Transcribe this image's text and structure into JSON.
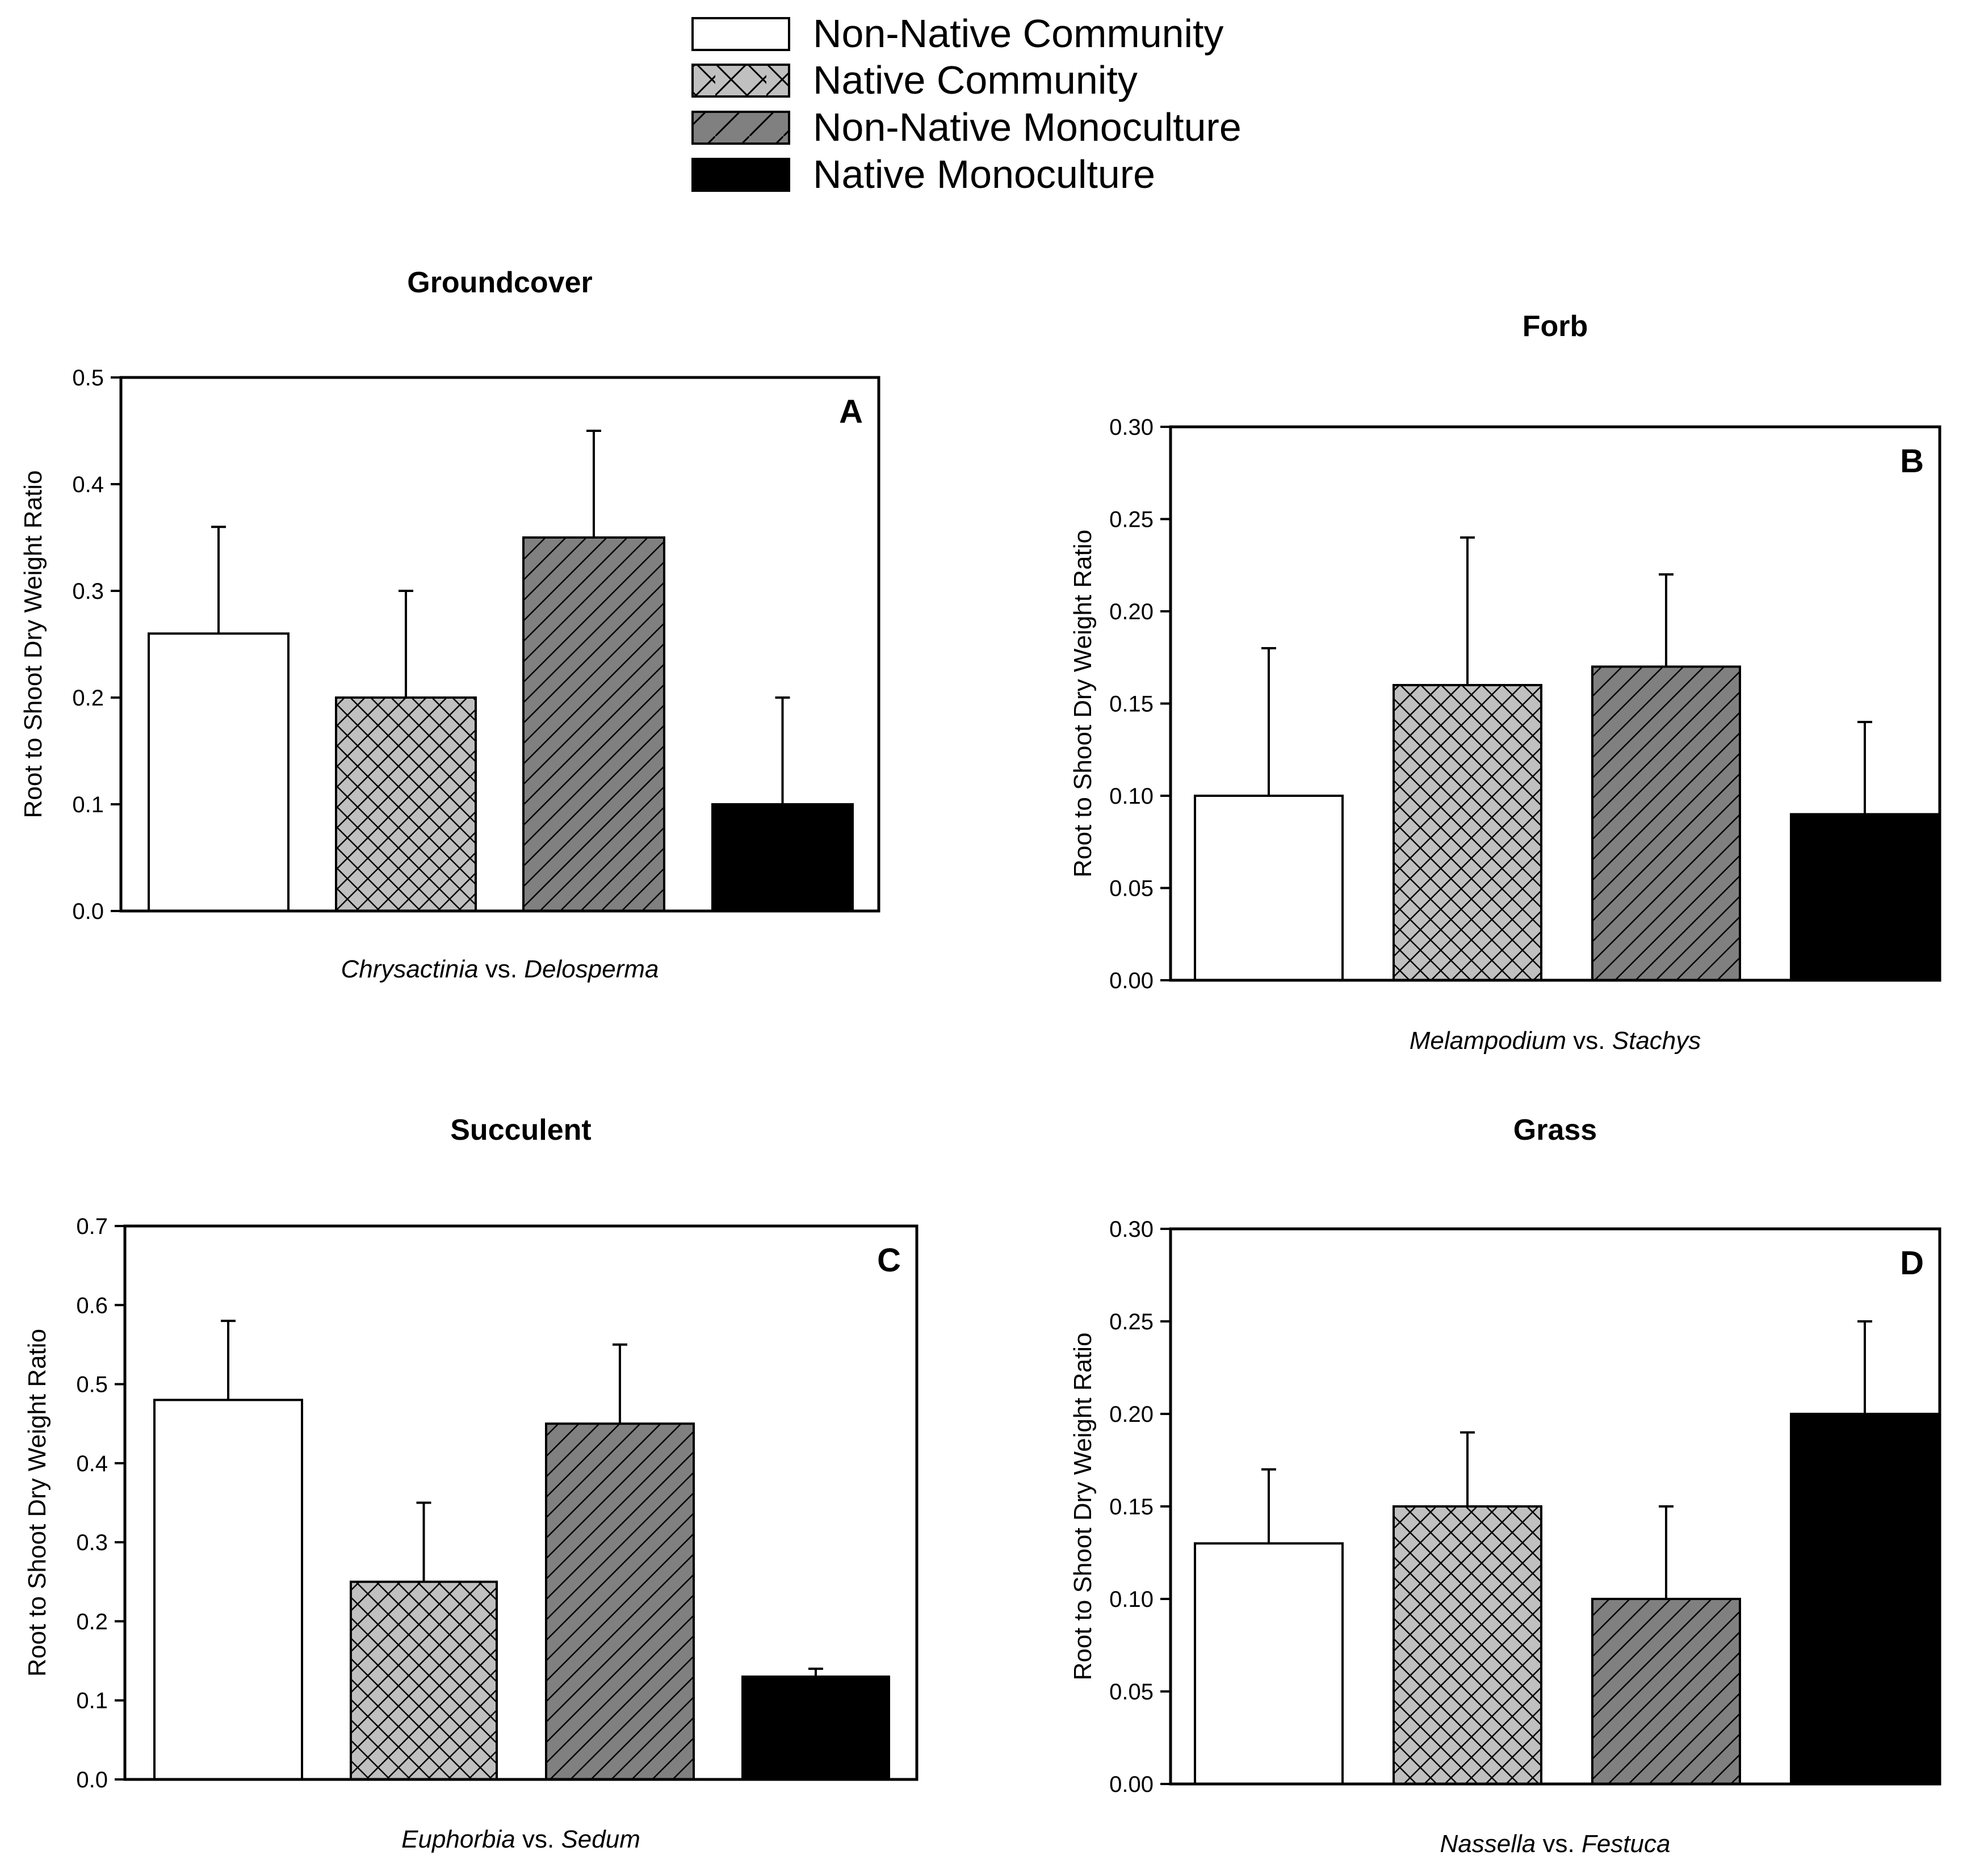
{
  "legend": [
    {
      "label": "Non-Native Community",
      "fill": "white"
    },
    {
      "label": "Native Community",
      "fill": "crosshatch"
    },
    {
      "label": "Non-Native Monoculture",
      "fill": "diagonal"
    },
    {
      "label": "Native Monoculture",
      "fill": "black"
    }
  ],
  "colors": {
    "non_native_community": "#ffffff",
    "native_community": "#c0c0c0",
    "non_native_monoculture": "#808080",
    "native_monoculture": "#000000"
  },
  "chart_data": [
    {
      "type": "bar",
      "panel": "A",
      "title": "Groundcover",
      "ylabel": "Root to Shoot Dry Weight Ratio",
      "xlabel_genus1": "Chrysactinia",
      "xlabel_vs": " vs. ",
      "xlabel_genus2": "Delosperma",
      "ylim": [
        0,
        0.5
      ],
      "yticks": [
        "0.0",
        "0.1",
        "0.2",
        "0.3",
        "0.4",
        "0.5"
      ],
      "categories": [
        "Non-Native Community",
        "Native Community",
        "Non-Native Monoculture",
        "Native Monoculture"
      ],
      "values": [
        0.26,
        0.2,
        0.35,
        0.1
      ],
      "error_upper": [
        0.36,
        0.3,
        0.45,
        0.2
      ]
    },
    {
      "type": "bar",
      "panel": "B",
      "title": "Forb",
      "ylabel": "Root to Shoot Dry Weight Ratio",
      "xlabel_genus1": "Melampodium",
      "xlabel_vs": " vs. ",
      "xlabel_genus2": "Stachys",
      "ylim": [
        0,
        0.3
      ],
      "yticks": [
        "0.00",
        "0.05",
        "0.10",
        "0.15",
        "0.20",
        "0.25",
        "0.30"
      ],
      "categories": [
        "Non-Native Community",
        "Native Community",
        "Non-Native Monoculture",
        "Native Monoculture"
      ],
      "values": [
        0.1,
        0.16,
        0.17,
        0.09
      ],
      "error_upper": [
        0.18,
        0.24,
        0.22,
        0.14
      ]
    },
    {
      "type": "bar",
      "panel": "C",
      "title": "Succulent",
      "ylabel": "Root to Shoot Dry Weight Ratio",
      "xlabel_genus1": "Euphorbia",
      "xlabel_vs": " vs. ",
      "xlabel_genus2": "Sedum",
      "ylim": [
        0,
        0.7
      ],
      "yticks": [
        "0.0",
        "0.1",
        "0.2",
        "0.3",
        "0.4",
        "0.5",
        "0.6",
        "0.7"
      ],
      "categories": [
        "Non-Native Community",
        "Native Community",
        "Non-Native Monoculture",
        "Native Monoculture"
      ],
      "values": [
        0.48,
        0.25,
        0.45,
        0.13
      ],
      "error_upper": [
        0.58,
        0.35,
        0.55,
        0.14
      ]
    },
    {
      "type": "bar",
      "panel": "D",
      "title": "Grass",
      "ylabel": "Root to Shoot Dry Weight Ratio",
      "xlabel_genus1": "Nassella",
      "xlabel_vs": " vs. ",
      "xlabel_genus2": "Festuca",
      "ylim": [
        0,
        0.3
      ],
      "yticks": [
        "0.00",
        "0.05",
        "0.10",
        "0.15",
        "0.20",
        "0.25",
        "0.30"
      ],
      "categories": [
        "Non-Native Community",
        "Native Community",
        "Non-Native Monoculture",
        "Native Monoculture"
      ],
      "values": [
        0.13,
        0.15,
        0.1,
        0.2
      ],
      "error_upper": [
        0.17,
        0.19,
        0.15,
        0.25
      ]
    }
  ]
}
